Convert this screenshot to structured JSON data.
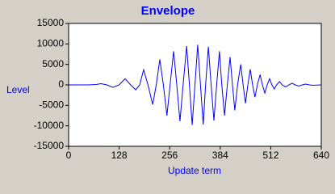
{
  "chart_data": {
    "type": "line",
    "title": "Envelope",
    "xlabel": "Update term",
    "ylabel": "Level",
    "x": [
      0,
      50,
      70,
      82,
      97,
      112,
      128,
      143,
      157,
      170,
      180,
      190,
      201,
      213,
      222,
      231,
      240,
      249,
      257,
      266,
      274,
      282,
      290,
      299,
      306,
      313,
      320,
      327,
      334,
      341,
      347,
      354,
      361,
      368,
      375,
      382,
      388,
      395,
      402,
      409,
      415,
      421,
      428,
      436,
      442,
      448,
      454,
      460,
      466,
      472,
      478,
      485,
      491,
      497,
      503,
      509,
      515,
      521,
      527,
      534,
      541,
      550,
      558,
      566,
      574,
      583,
      592,
      600,
      610,
      620,
      640
    ],
    "series": [
      {
        "name": "Level",
        "color": "#0000ff",
        "values": [
          0,
          0,
          100,
          300,
          0,
          -600,
          0,
          1500,
          0,
          -1200,
          0,
          3700,
          0,
          -4800,
          0,
          6200,
          0,
          -7500,
          0,
          8200,
          0,
          -8900,
          0,
          9500,
          0,
          -9800,
          0,
          9800,
          0,
          -9700,
          0,
          9300,
          0,
          -8700,
          0,
          8200,
          0,
          -7500,
          0,
          6800,
          0,
          -6200,
          0,
          5000,
          0,
          -4500,
          0,
          3800,
          0,
          -3000,
          0,
          2500,
          0,
          -2000,
          0,
          1500,
          0,
          -1000,
          0,
          800,
          0,
          -500,
          0,
          400,
          0,
          -300,
          0,
          200,
          0,
          -100,
          0
        ]
      }
    ],
    "xlim": [
      0,
      640
    ],
    "xticks": [
      0,
      128,
      256,
      384,
      512,
      640
    ],
    "ylim": [
      -15000,
      15000
    ],
    "yticks": [
      -15000,
      -10000,
      -5000,
      0,
      5000,
      10000,
      15000
    ],
    "grid": false
  }
}
